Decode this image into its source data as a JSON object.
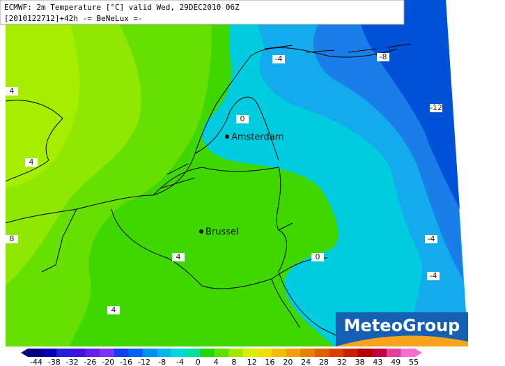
{
  "header": {
    "line1": "ECMWF: 2m Temperature [°C] valid Wed, 29DEC2010 06Z",
    "line2": "[2010122712]+42h -= BeNeLux =-"
  },
  "cities": [
    {
      "name": "Amsterdam"
    },
    {
      "name": "Brussel"
    }
  ],
  "contour_labels": [
    "4",
    "4",
    "8",
    "4",
    "4",
    "0",
    "-4",
    "-8",
    "-12",
    "-4",
    "-4",
    "0"
  ],
  "logo": "MeteoGroup",
  "colorbar": {
    "labels": [
      -44,
      -38,
      -32,
      -26,
      -20,
      -16,
      -12,
      -8,
      -4,
      0,
      4,
      8,
      12,
      16,
      20,
      24,
      28,
      32,
      38,
      43,
      49,
      55
    ]
  }
}
